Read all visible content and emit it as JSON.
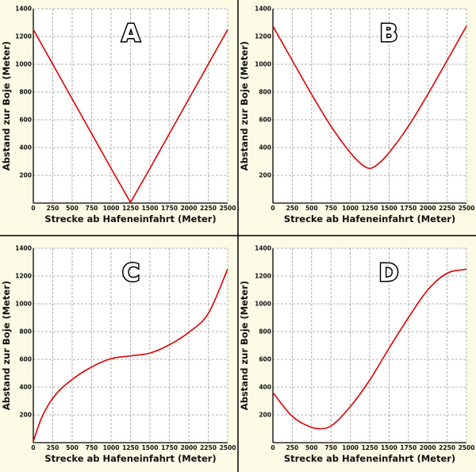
{
  "figure": {
    "background": "#fbfbe6",
    "divider_color": "#000000",
    "line_color": "#e00000"
  },
  "chart_data": [
    {
      "panel": "A",
      "type": "line",
      "xlabel": "Strecke ab Hafeneinfahrt (Meter)",
      "ylabel": "Abstand zur Boje (Meter)",
      "xlim": [
        0,
        2500
      ],
      "ylim": [
        0,
        1400
      ],
      "xticks": [
        "0",
        "250",
        "500",
        "750",
        "1000",
        "1250",
        "1500",
        "1750",
        "2000",
        "2250",
        "2500"
      ],
      "yticks": [
        "200",
        "400",
        "600",
        "800",
        "1000",
        "1200",
        "1400"
      ],
      "grid": true,
      "x": [
        0,
        250,
        500,
        750,
        1000,
        1250,
        1500,
        1750,
        2000,
        2250,
        2500
      ],
      "y": [
        1250,
        1000,
        750,
        500,
        250,
        5,
        250,
        500,
        750,
        1000,
        1250
      ]
    },
    {
      "panel": "B",
      "type": "line",
      "xlabel": "Strecke ab Hafeneinfahrt (Meter)",
      "ylabel": "Abstand zur Boje (Meter)",
      "xlim": [
        0,
        2500
      ],
      "ylim": [
        0,
        1400
      ],
      "xticks": [
        "0",
        "250",
        "500",
        "750",
        "1000",
        "1250",
        "1500",
        "1750",
        "2000",
        "2250",
        "2500"
      ],
      "yticks": [
        "200",
        "400",
        "600",
        "800",
        "1000",
        "1200",
        "1400"
      ],
      "grid": true,
      "x": [
        0,
        250,
        500,
        750,
        1000,
        1125,
        1250,
        1375,
        1500,
        1750,
        2000,
        2250,
        2500
      ],
      "y": [
        1275,
        1027,
        783,
        554,
        363,
        289,
        250,
        289,
        363,
        554,
        783,
        1027,
        1275
      ]
    },
    {
      "panel": "C",
      "type": "line",
      "xlabel": "Strecke ab Hafeneinfahrt (Meter)",
      "ylabel": "Abstand zur Boje (Meter)",
      "xlim": [
        0,
        2500
      ],
      "ylim": [
        0,
        1400
      ],
      "xticks": [
        "0",
        "250",
        "500",
        "750",
        "1000",
        "1250",
        "1500",
        "1750",
        "2000",
        "2250",
        "2500"
      ],
      "yticks": [
        "200",
        "400",
        "600",
        "800",
        "1000",
        "1200",
        "1400"
      ],
      "grid": true,
      "x": [
        0,
        100,
        250,
        500,
        750,
        1000,
        1250,
        1500,
        1750,
        2000,
        2250,
        2500
      ],
      "y": [
        10,
        170,
        320,
        455,
        545,
        605,
        625,
        645,
        705,
        795,
        930,
        1250
      ]
    },
    {
      "panel": "D",
      "type": "line",
      "xlabel": "Strecke ab Hafeneinfahrt (Meter)",
      "ylabel": "Abstand zur Boje (Meter)",
      "xlim": [
        0,
        2500
      ],
      "ylim": [
        0,
        1400
      ],
      "xticks": [
        "0",
        "250",
        "500",
        "750",
        "1000",
        "1250",
        "1500",
        "1750",
        "2000",
        "2250",
        "2500"
      ],
      "yticks": [
        "200",
        "400",
        "600",
        "800",
        "1000",
        "1200",
        "1400"
      ],
      "grid": true,
      "x": [
        0,
        250,
        500,
        625,
        750,
        1000,
        1250,
        1500,
        1750,
        2000,
        2250,
        2500
      ],
      "y": [
        360,
        190,
        110,
        100,
        120,
        260,
        450,
        680,
        900,
        1100,
        1220,
        1250
      ]
    }
  ]
}
